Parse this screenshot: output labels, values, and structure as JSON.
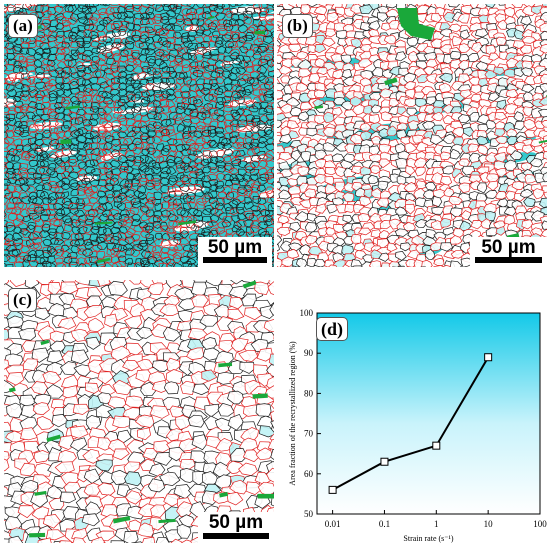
{
  "panels": {
    "a": {
      "label": "(a)",
      "scale_bar": "50 µm",
      "background": "#33c8cc"
    },
    "b": {
      "label": "(b)",
      "scale_bar": "50 µm",
      "background": "#ffffff"
    },
    "c": {
      "label": "(c)",
      "scale_bar": "50 µm",
      "background": "#ffffff"
    }
  },
  "colors": {
    "high_angle_boundary": "#1a1a1a",
    "low_angle_boundary": "#e02020",
    "deformed_region": "#33c8cc",
    "substructure": "#1aa83a"
  },
  "chart_data": {
    "type": "line",
    "panel_label": "(d)",
    "xlabel": "Strain rate (s⁻¹)",
    "ylabel": "Area fraction of the recrystallized region (%)",
    "xscale": "log",
    "xlim": [
      0.005,
      100
    ],
    "ylim": [
      50,
      100
    ],
    "xticks": [
      "0.01",
      "0.1",
      "1",
      "10",
      "100"
    ],
    "yticks": [
      "50",
      "60",
      "70",
      "80",
      "90",
      "100"
    ],
    "x": [
      0.01,
      0.1,
      1,
      10
    ],
    "y": [
      56,
      63,
      67,
      89
    ],
    "marker": "square-open",
    "background": "gradient cyan to white"
  }
}
